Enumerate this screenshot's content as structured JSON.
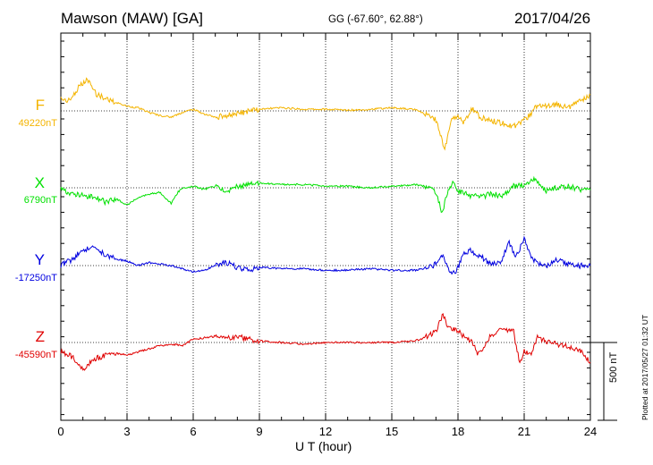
{
  "header": {
    "station": "Mawson (MAW)  [GA]",
    "coords": "GG (-67.60°,  62.88°)",
    "date": "2017/04/26"
  },
  "footer": {
    "xlabel": "U T (hour)",
    "scale_label": "500 nT",
    "plotted": "Plotted at 2017/05/27 01:32 UT"
  },
  "colors": {
    "F": "#f4b400",
    "X": "#00e000",
    "Y": "#0000e0",
    "Z": "#e00000"
  },
  "chart_data": {
    "type": "line",
    "title": "Mawson (MAW)  [GA]",
    "xlabel": "U T (hour)",
    "xlim": [
      0,
      24
    ],
    "xticks": [
      0,
      3,
      6,
      9,
      12,
      15,
      18,
      21,
      24
    ],
    "grid": true,
    "scale_bar_nT": 500,
    "series": [
      {
        "name": "F",
        "baseline_label": "49220nT",
        "points": [
          [
            0,
            80
          ],
          [
            0.4,
            65
          ],
          [
            0.8,
            150
          ],
          [
            1.2,
            200
          ],
          [
            1.6,
            110
          ],
          [
            2,
            80
          ],
          [
            2.5,
            55
          ],
          [
            3,
            30
          ],
          [
            3.5,
            20
          ],
          [
            4,
            -10
          ],
          [
            4.5,
            -30
          ],
          [
            5,
            -40
          ],
          [
            5.5,
            -10
          ],
          [
            6,
            10
          ],
          [
            6.5,
            -20
          ],
          [
            7,
            -40
          ],
          [
            7.5,
            -30
          ],
          [
            8,
            -20
          ],
          [
            8.5,
            0
          ],
          [
            9,
            10
          ],
          [
            10,
            20
          ],
          [
            11,
            10
          ],
          [
            12,
            10
          ],
          [
            13,
            5
          ],
          [
            14,
            10
          ],
          [
            15,
            20
          ],
          [
            16,
            10
          ],
          [
            16.5,
            -20
          ],
          [
            17,
            -60
          ],
          [
            17.2,
            -150
          ],
          [
            17.4,
            -250
          ],
          [
            17.7,
            -60
          ],
          [
            18,
            -40
          ],
          [
            18.3,
            -80
          ],
          [
            18.6,
            20
          ],
          [
            19,
            -40
          ],
          [
            19.5,
            -60
          ],
          [
            20,
            -80
          ],
          [
            20.5,
            -100
          ],
          [
            21,
            -60
          ],
          [
            21.3,
            -20
          ],
          [
            21.6,
            40
          ],
          [
            22,
            30
          ],
          [
            22.5,
            40
          ],
          [
            23,
            20
          ],
          [
            23.5,
            60
          ],
          [
            24,
            100
          ]
        ]
      },
      {
        "name": "X",
        "baseline_label": "6790nT",
        "points": [
          [
            0,
            -10
          ],
          [
            0.5,
            -40
          ],
          [
            1,
            -50
          ],
          [
            1.5,
            -60
          ],
          [
            2,
            -90
          ],
          [
            2.5,
            -70
          ],
          [
            3,
            -110
          ],
          [
            3.5,
            -60
          ],
          [
            4,
            -40
          ],
          [
            4.5,
            -30
          ],
          [
            5,
            -100
          ],
          [
            5.3,
            -30
          ],
          [
            5.5,
            0
          ],
          [
            6,
            10
          ],
          [
            6.5,
            -10
          ],
          [
            7,
            10
          ],
          [
            7.5,
            -20
          ],
          [
            8,
            10
          ],
          [
            8.5,
            20
          ],
          [
            9,
            30
          ],
          [
            10,
            20
          ],
          [
            11,
            20
          ],
          [
            12,
            10
          ],
          [
            13,
            10
          ],
          [
            14,
            0
          ],
          [
            15,
            10
          ],
          [
            16,
            20
          ],
          [
            16.5,
            10
          ],
          [
            17,
            -30
          ],
          [
            17.3,
            -170
          ],
          [
            17.5,
            -30
          ],
          [
            17.8,
            40
          ],
          [
            18,
            -20
          ],
          [
            18.5,
            -50
          ],
          [
            19,
            -60
          ],
          [
            19.5,
            -40
          ],
          [
            20,
            -50
          ],
          [
            20.5,
            10
          ],
          [
            21,
            20
          ],
          [
            21.5,
            60
          ],
          [
            22,
            -20
          ],
          [
            22.5,
            0
          ],
          [
            23,
            10
          ],
          [
            23.5,
            -10
          ],
          [
            24,
            -20
          ]
        ]
      },
      {
        "name": "Y",
        "baseline_label": "-17250nT",
        "points": [
          [
            0,
            0
          ],
          [
            0.5,
            40
          ],
          [
            1,
            100
          ],
          [
            1.5,
            110
          ],
          [
            2,
            70
          ],
          [
            2.5,
            40
          ],
          [
            3,
            30
          ],
          [
            3.5,
            0
          ],
          [
            4,
            20
          ],
          [
            4.5,
            10
          ],
          [
            5,
            0
          ],
          [
            5.5,
            -20
          ],
          [
            6,
            -40
          ],
          [
            6.5,
            -30
          ],
          [
            7,
            0
          ],
          [
            7.5,
            20
          ],
          [
            8,
            -10
          ],
          [
            8.5,
            -30
          ],
          [
            9,
            -10
          ],
          [
            10,
            -20
          ],
          [
            11,
            -20
          ],
          [
            12,
            -30
          ],
          [
            13,
            -30
          ],
          [
            14,
            -20
          ],
          [
            15,
            -30
          ],
          [
            16,
            -30
          ],
          [
            16.5,
            -20
          ],
          [
            17,
            10
          ],
          [
            17.3,
            60
          ],
          [
            17.6,
            -40
          ],
          [
            17.9,
            -50
          ],
          [
            18.2,
            60
          ],
          [
            18.5,
            100
          ],
          [
            19,
            60
          ],
          [
            19.5,
            10
          ],
          [
            20,
            30
          ],
          [
            20.3,
            160
          ],
          [
            20.6,
            50
          ],
          [
            21,
            170
          ],
          [
            21.3,
            50
          ],
          [
            21.6,
            20
          ],
          [
            22,
            -10
          ],
          [
            22.5,
            40
          ],
          [
            23,
            10
          ],
          [
            23.5,
            0
          ],
          [
            24,
            0
          ]
        ]
      },
      {
        "name": "Z",
        "baseline_label": "-45590nT",
        "points": [
          [
            0,
            -60
          ],
          [
            0.5,
            -90
          ],
          [
            1,
            -170
          ],
          [
            1.5,
            -110
          ],
          [
            2,
            -80
          ],
          [
            2.5,
            -70
          ],
          [
            3,
            -80
          ],
          [
            3.5,
            -60
          ],
          [
            4,
            -40
          ],
          [
            4.5,
            -20
          ],
          [
            5,
            -10
          ],
          [
            5.5,
            -20
          ],
          [
            6,
            20
          ],
          [
            6.5,
            30
          ],
          [
            7,
            40
          ],
          [
            7.5,
            30
          ],
          [
            8,
            40
          ],
          [
            8.5,
            20
          ],
          [
            9,
            10
          ],
          [
            10,
            0
          ],
          [
            11,
            -10
          ],
          [
            12,
            0
          ],
          [
            13,
            0
          ],
          [
            14,
            0
          ],
          [
            15,
            0
          ],
          [
            16,
            10
          ],
          [
            16.5,
            30
          ],
          [
            17,
            70
          ],
          [
            17.3,
            180
          ],
          [
            17.6,
            90
          ],
          [
            18,
            80
          ],
          [
            18.3,
            30
          ],
          [
            18.6,
            10
          ],
          [
            18.9,
            -70
          ],
          [
            19.2,
            -20
          ],
          [
            19.5,
            50
          ],
          [
            20,
            80
          ],
          [
            20.5,
            80
          ],
          [
            20.8,
            -130
          ],
          [
            21,
            -50
          ],
          [
            21.3,
            -80
          ],
          [
            21.6,
            40
          ],
          [
            22,
            0
          ],
          [
            22.5,
            -10
          ],
          [
            23,
            -30
          ],
          [
            23.5,
            -50
          ],
          [
            24,
            -130
          ]
        ]
      }
    ]
  }
}
